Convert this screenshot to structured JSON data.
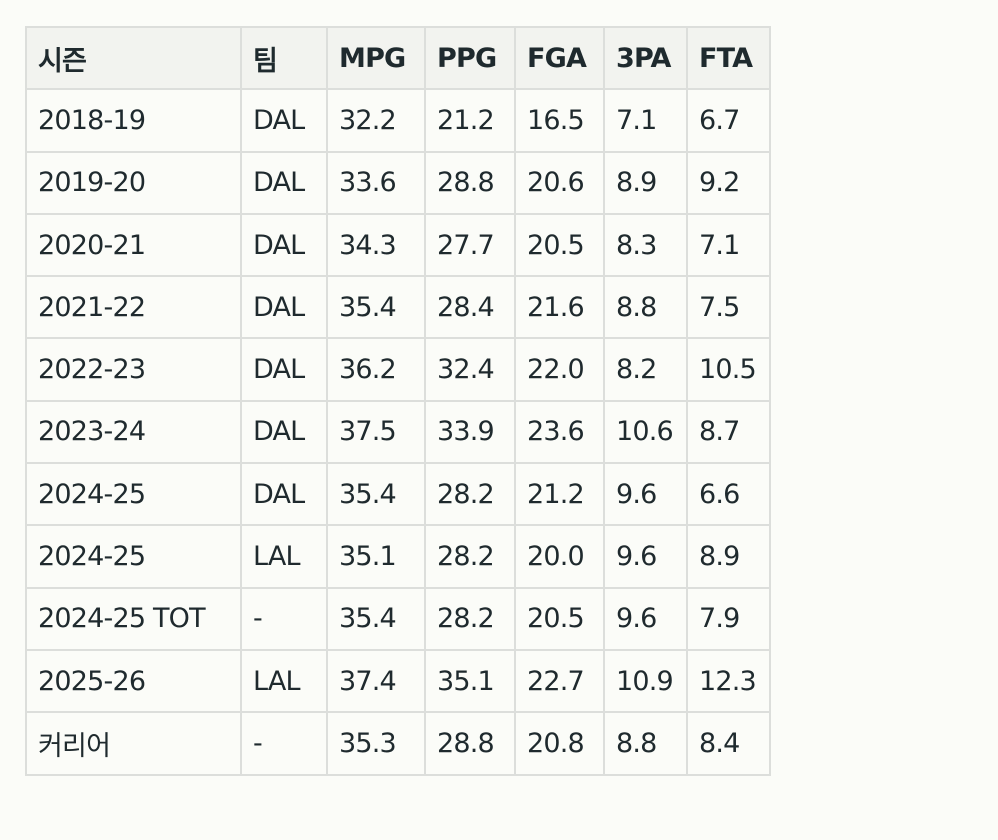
{
  "table": {
    "headers": [
      "시즌",
      "팀",
      "MPG",
      "PPG",
      "FGA",
      "3PA",
      "FTA"
    ],
    "rows": [
      [
        "2018-19",
        "DAL",
        "32.2",
        "21.2",
        "16.5",
        "7.1",
        "6.7"
      ],
      [
        "2019-20",
        "DAL",
        "33.6",
        "28.8",
        "20.6",
        "8.9",
        "9.2"
      ],
      [
        "2020-21",
        "DAL",
        "34.3",
        "27.7",
        "20.5",
        "8.3",
        "7.1"
      ],
      [
        "2021-22",
        "DAL",
        "35.4",
        "28.4",
        "21.6",
        "8.8",
        "7.5"
      ],
      [
        "2022-23",
        "DAL",
        "36.2",
        "32.4",
        "22.0",
        "8.2",
        "10.5"
      ],
      [
        "2023-24",
        "DAL",
        "37.5",
        "33.9",
        "23.6",
        "10.6",
        "8.7"
      ],
      [
        "2024-25",
        "DAL",
        "35.4",
        "28.2",
        "21.2",
        "9.6",
        "6.6"
      ],
      [
        "2024-25",
        "LAL",
        "35.1",
        "28.2",
        "20.0",
        "9.6",
        "8.9"
      ],
      [
        "2024-25 TOT",
        "-",
        "35.4",
        "28.2",
        "20.5",
        "9.6",
        "7.9"
      ],
      [
        "2025-26",
        "LAL",
        "37.4",
        "35.1",
        "22.7",
        "10.9",
        "12.3"
      ],
      [
        "커리어",
        "-",
        "35.3",
        "28.8",
        "20.8",
        "8.8",
        "8.4"
      ]
    ]
  }
}
